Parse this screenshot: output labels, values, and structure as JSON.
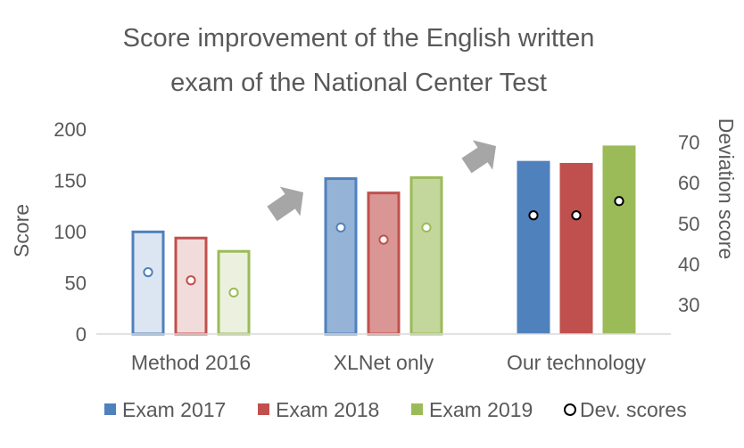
{
  "chart_data": {
    "type": "bar",
    "title_lines": [
      "Score improvement of the English written",
      "exam of the National Center Test"
    ],
    "categories": [
      "Method 2016",
      "XLNet only",
      "Our technology"
    ],
    "series": [
      {
        "name": "Exam 2017",
        "values": [
          101,
          153,
          169
        ],
        "color": "#4f81bd",
        "light_fill": "#dce6f2",
        "mid_fill": "#95b3d7"
      },
      {
        "name": "Exam 2018",
        "values": [
          95,
          139,
          167
        ],
        "color": "#c0504d",
        "light_fill": "#f2dcdb",
        "mid_fill": "#d99694"
      },
      {
        "name": "Exam 2019",
        "values": [
          82,
          154,
          184
        ],
        "color": "#9bbb59",
        "light_fill": "#ebf1de",
        "mid_fill": "#c3d69b"
      }
    ],
    "dev_scores": {
      "name": "Dev. scores",
      "values": [
        [
          38,
          36,
          33
        ],
        [
          49,
          46,
          49
        ],
        [
          52,
          52,
          55.5
        ]
      ]
    },
    "ylabel": "Score",
    "ylim": [
      0,
      200
    ],
    "yticks": [
      0,
      50,
      100,
      150,
      200
    ],
    "y2label": "Deviation score",
    "y2lim": [
      22.8,
      73.2
    ],
    "y2ticks": [
      30,
      40,
      50,
      60,
      70
    ],
    "legend_position": "bottom",
    "grid": false,
    "arrow_color": "#a6a6a6"
  }
}
